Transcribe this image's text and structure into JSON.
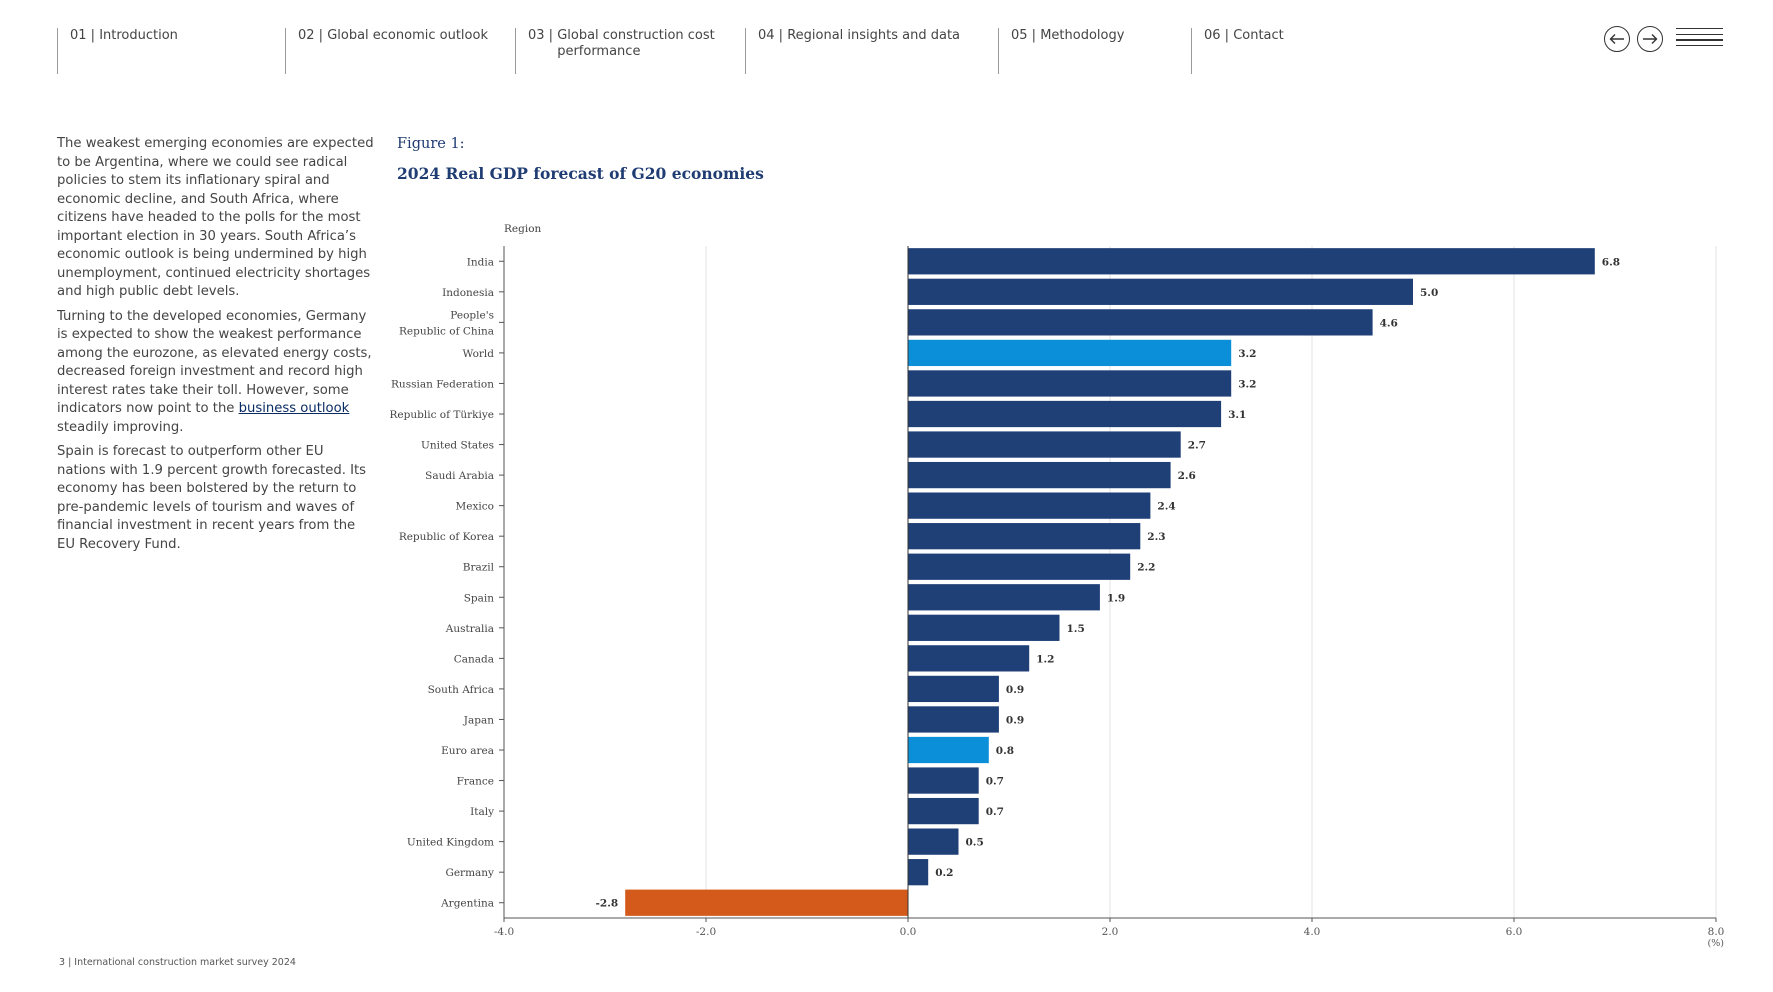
{
  "nav": {
    "items": [
      {
        "num": "01 | ",
        "label": "Introduction"
      },
      {
        "num": "02 | ",
        "label": "Global economic outlook"
      },
      {
        "num": "03 | ",
        "label": "Global construction cost performance"
      },
      {
        "num": "04 | ",
        "label": "Regional insights and data"
      },
      {
        "num": "05 | ",
        "label": "Methodology"
      },
      {
        "num": "06 | ",
        "label": "Contact"
      }
    ],
    "prev_icon": "arrow-left-icon",
    "next_icon": "arrow-right-icon",
    "menu_icon": "hamburger-menu-icon"
  },
  "body": {
    "p1": "The weakest emerging economies are expected to be Argentina, where we could see radical policies to stem its inflationary spiral and economic decline, and South Africa, where citizens have headed to the polls for the most important election in 30 years. South Africa’s economic outlook is being undermined by high unemployment, continued electricity shortages and high public debt levels.",
    "p2_before": "Turning to the developed economies, Germany is expected to show the weakest performance among the eurozone, as elevated energy costs, decreased foreign investment and record high interest rates take their toll. However, some indicators now point to the ",
    "p2_link": "business outlook",
    "p2_after": " steadily improving.",
    "p3": "Spain is forecast to outperform other EU nations with 1.9 percent growth forecasted. Its economy has been bolstered by the return to pre-pandemic levels of tourism and waves of financial investment in recent years from the EU Recovery Fund."
  },
  "figure": {
    "label": "Figure 1:",
    "title": "2024 Real GDP forecast of G20 economies"
  },
  "colors": {
    "navy": "#1f3f77",
    "highlight": "#0a8fd8",
    "negative": "#d35a1b"
  },
  "chart_data": {
    "type": "bar",
    "orientation": "horizontal",
    "y_axis_title": "Region",
    "x_unit": "(%)",
    "xlim": [
      -4.0,
      8.0
    ],
    "x_ticks": [
      "-4.0",
      "-2.0",
      "0.0",
      "2.0",
      "4.0",
      "6.0",
      "8.0"
    ],
    "categories": [
      "India",
      "Indonesia",
      "People's Republic of China",
      "World",
      "Russian Federation",
      "Republic of Türkiye",
      "United States",
      "Saudi Arabia",
      "Mexico",
      "Republic of Korea",
      "Brazil",
      "Spain",
      "Australia",
      "Canada",
      "South Africa",
      "Japan",
      "Euro area",
      "France",
      "Italy",
      "United Kingdom",
      "Germany",
      "Argentina"
    ],
    "values": [
      6.8,
      5.0,
      4.6,
      3.2,
      3.2,
      3.1,
      2.7,
      2.6,
      2.4,
      2.3,
      2.2,
      1.9,
      1.5,
      1.2,
      0.9,
      0.9,
      0.8,
      0.7,
      0.7,
      0.5,
      0.2,
      -2.8
    ],
    "labels": [
      "6.8",
      "5.0",
      "4.6",
      "3.2",
      "3.2",
      "3.1",
      "2.7",
      "2.6",
      "2.4",
      "2.3",
      "2.2",
      "1.9",
      "1.5",
      "1.2",
      "0.9",
      "0.9",
      "0.8",
      "0.7",
      "0.7",
      "0.5",
      "0.2",
      "-2.8"
    ],
    "highlighted": [
      "World",
      "Euro area"
    ],
    "negative_category": "Argentina",
    "grid": true
  },
  "footer": "3  |  International construction market survey 2024"
}
